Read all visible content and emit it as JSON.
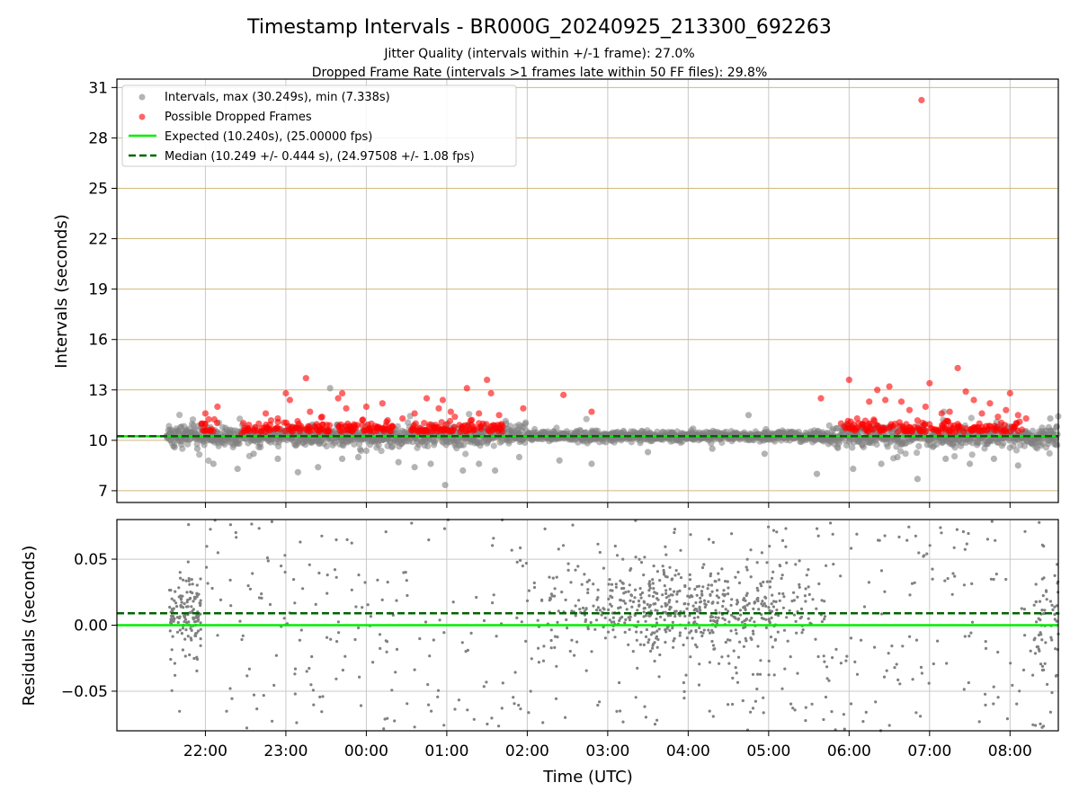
{
  "title": "Timestamp Intervals - BR000G_20240925_213300_692263",
  "subtitle_1": "Jitter Quality (intervals within +/-1 frame): 27.0%",
  "subtitle_2": "Dropped Frame Rate (intervals >1 frames late within 50 FF files): 29.8%",
  "colors": {
    "intervals": "#808080",
    "dropped": "#ff0000",
    "expected": "#00ee00",
    "median": "#006400",
    "grid_vertical": "#c8c8c8",
    "grid_horizontal_top": "#d2b87a",
    "grid_residual": "#c8c8c8"
  },
  "chart_data": [
    {
      "type": "scatter",
      "ylabel": "Intervals (seconds)",
      "x_axis": "time (hours relative to 00:00 UTC of 2024-09-26; negative = 2024-09-25)",
      "xlim": [
        -3.1,
        8.6
      ],
      "ylim": [
        6.3,
        31.5
      ],
      "yticks": [
        7,
        10,
        13,
        16,
        19,
        22,
        25,
        28,
        31
      ],
      "grid": true,
      "legend": {
        "position": "top-left",
        "entries": [
          "Intervals, max (30.249s), min (7.338s)",
          "Possible Dropped Frames",
          "Expected (10.240s), (25.00000 fps)",
          "Median (10.249 +/- 0.444 s), (24.97508 +/- 1.08 fps)"
        ]
      },
      "expected_line": 10.24,
      "median_line": 10.249,
      "max_interval": 30.249,
      "min_interval": 7.338,
      "series": [
        {
          "name": "Intervals, max (30.249s), min (7.338s)",
          "summary": "dense band ~9.3–11.3 s from 21:33 to 08:36, narrower (~9.8–10.9 s) between 02:00 and 05:45",
          "points": [
            [
              -2.48,
              10.25
            ],
            [
              -2.3,
              10.8
            ],
            [
              -2.1,
              9.5
            ],
            [
              -1.9,
              8.6
            ],
            [
              -1.6,
              8.3
            ],
            [
              -1.4,
              9.2
            ],
            [
              -1.1,
              8.9
            ],
            [
              -0.85,
              8.1
            ],
            [
              -0.6,
              8.4
            ],
            [
              -0.45,
              13.1
            ],
            [
              -0.3,
              8.9
            ],
            [
              -0.1,
              9.0
            ],
            [
              0.4,
              8.7
            ],
            [
              0.6,
              8.4
            ],
            [
              0.8,
              8.6
            ],
            [
              0.98,
              7.34
            ],
            [
              1.2,
              8.2
            ],
            [
              1.4,
              8.6
            ],
            [
              1.6,
              8.2
            ],
            [
              1.9,
              9.0
            ],
            [
              2.4,
              8.8
            ],
            [
              2.8,
              8.6
            ],
            [
              3.5,
              9.3
            ],
            [
              4.3,
              9.5
            ],
            [
              4.75,
              11.5
            ],
            [
              4.95,
              9.2
            ],
            [
              5.6,
              8.0
            ],
            [
              6.05,
              8.3
            ],
            [
              6.4,
              8.6
            ],
            [
              6.6,
              9.0
            ],
            [
              6.85,
              7.7
            ],
            [
              7.2,
              8.9
            ],
            [
              7.5,
              8.6
            ],
            [
              7.8,
              8.9
            ],
            [
              8.1,
              8.5
            ],
            [
              8.5,
              11.3
            ]
          ]
        },
        {
          "name": "Possible Dropped Frames",
          "points": [
            [
              -2.0,
              11.6
            ],
            [
              -1.85,
              12.0
            ],
            [
              -1.55,
              10.4
            ],
            [
              -1.25,
              11.6
            ],
            [
              -1.1,
              11.3
            ],
            [
              -1.0,
              12.8
            ],
            [
              -0.95,
              12.4
            ],
            [
              -0.75,
              13.7
            ],
            [
              -0.7,
              11.7
            ],
            [
              -0.55,
              11.4
            ],
            [
              -0.35,
              12.5
            ],
            [
              -0.3,
              12.8
            ],
            [
              -0.25,
              11.9
            ],
            [
              -0.05,
              11.2
            ],
            [
              0.0,
              12.0
            ],
            [
              0.2,
              12.2
            ],
            [
              0.45,
              11.3
            ],
            [
              0.6,
              11.6
            ],
            [
              0.75,
              12.5
            ],
            [
              0.9,
              11.9
            ],
            [
              0.95,
              12.4
            ],
            [
              1.05,
              11.7
            ],
            [
              1.1,
              11.4
            ],
            [
              1.25,
              13.1
            ],
            [
              1.4,
              11.6
            ],
            [
              1.5,
              13.6
            ],
            [
              1.55,
              12.8
            ],
            [
              1.65,
              11.5
            ],
            [
              1.95,
              11.9
            ],
            [
              2.45,
              12.7
            ],
            [
              2.8,
              11.7
            ],
            [
              5.65,
              12.5
            ],
            [
              5.9,
              11.0
            ],
            [
              6.0,
              13.6
            ],
            [
              6.1,
              11.3
            ],
            [
              6.25,
              12.3
            ],
            [
              6.35,
              13.0
            ],
            [
              6.45,
              12.4
            ],
            [
              6.5,
              13.2
            ],
            [
              6.65,
              12.3
            ],
            [
              6.75,
              11.8
            ],
            [
              6.95,
              12.0
            ],
            [
              6.9,
              30.25
            ],
            [
              7.0,
              13.4
            ],
            [
              7.15,
              11.6
            ],
            [
              7.25,
              11.7
            ],
            [
              7.35,
              14.3
            ],
            [
              7.45,
              12.9
            ],
            [
              7.55,
              12.4
            ],
            [
              7.65,
              11.6
            ],
            [
              7.75,
              12.2
            ],
            [
              7.85,
              11.4
            ],
            [
              7.95,
              11.8
            ],
            [
              8.0,
              12.8
            ],
            [
              8.1,
              11.5
            ],
            [
              8.2,
              11.3
            ]
          ]
        }
      ]
    },
    {
      "type": "scatter",
      "xlabel": "Time (UTC)",
      "ylabel": "Residuals (seconds)",
      "xlim": [
        -3.1,
        8.6
      ],
      "ylim": [
        -0.08,
        0.08
      ],
      "yticks": [
        -0.05,
        0.0,
        0.05
      ],
      "ytick_labels": [
        "−0.05",
        "0.00",
        "0.05"
      ],
      "xtick_labels": [
        "22:00",
        "23:00",
        "00:00",
        "01:00",
        "02:00",
        "03:00",
        "04:00",
        "05:00",
        "06:00",
        "07:00",
        "08:00"
      ],
      "xticks": [
        -2,
        -1,
        0,
        1,
        2,
        3,
        4,
        5,
        6,
        7,
        8
      ],
      "grid": true,
      "expected_line": 0.0,
      "median_line": 0.009,
      "series": [
        {
          "name": "Residuals",
          "summary": "scattered residuals filling ±0.08 s; denser cloud near 0.00–0.04 s between 02:45 and 05:45 and at 21:35–22:00"
        }
      ]
    }
  ]
}
